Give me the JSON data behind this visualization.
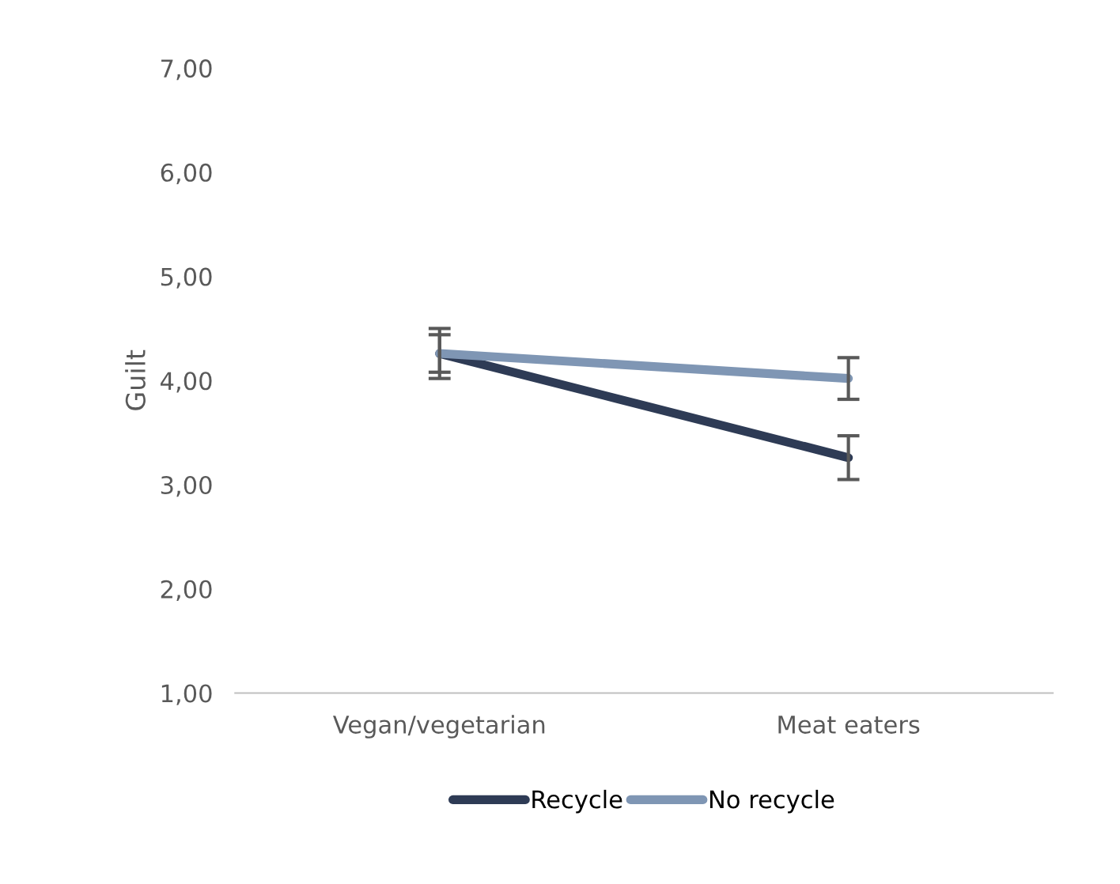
{
  "chart_data": {
    "type": "line",
    "ylabel": "Guilt",
    "categories": [
      "Vegan/vegetarian",
      "Meat eaters"
    ],
    "series": [
      {
        "name": "Recycle",
        "color": "#2e3b55",
        "values": [
          4.26,
          3.26
        ],
        "errors": [
          0.18,
          0.21
        ]
      },
      {
        "name": "No recycle",
        "color": "#7f96b4",
        "values": [
          4.26,
          4.02
        ],
        "errors": [
          0.24,
          0.2
        ]
      }
    ],
    "ylim": [
      1,
      7
    ],
    "yticks": [
      {
        "value": 1,
        "label": "1,00"
      },
      {
        "value": 2,
        "label": "2,00"
      },
      {
        "value": 3,
        "label": "3,00"
      },
      {
        "value": 4,
        "label": "4,00"
      },
      {
        "value": 5,
        "label": "5,00"
      },
      {
        "value": 6,
        "label": "6,00"
      },
      {
        "value": 7,
        "label": "7,00"
      }
    ],
    "grid": false,
    "legend": "bottom",
    "marker": "none",
    "line_style": "solid"
  }
}
